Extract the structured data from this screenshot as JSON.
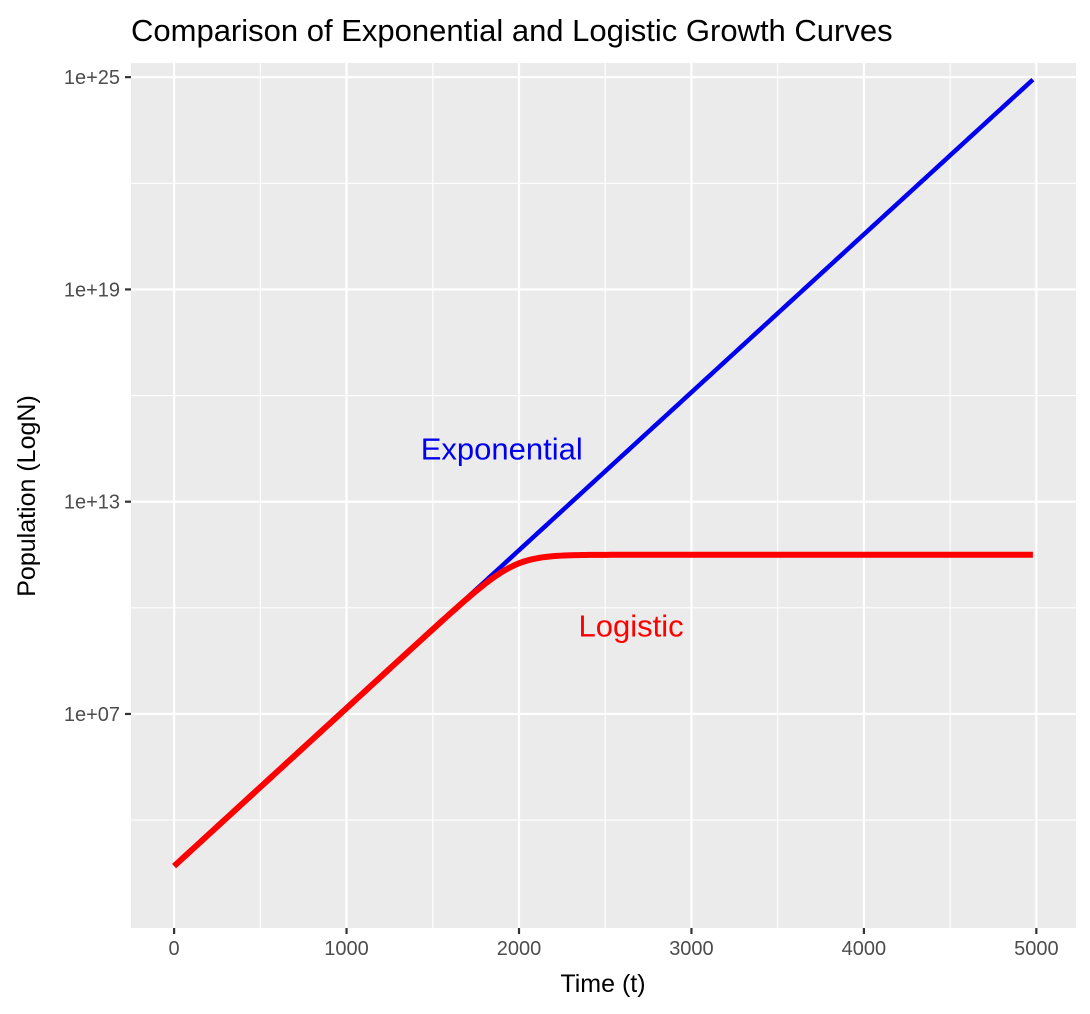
{
  "chart_data": {
    "type": "line",
    "title": "Comparison of Exponential and Logistic Growth Curves",
    "xlabel": "Time (t)",
    "ylabel": "Population (LogN)",
    "y_scale": "log10",
    "xlim": [
      -250,
      5230
    ],
    "ylim_log10": [
      0.95,
      25.4
    ],
    "x_ticks": [
      0,
      1000,
      2000,
      3000,
      4000,
      5000
    ],
    "x_tick_labels": [
      "0",
      "1000",
      "2000",
      "3000",
      "4000",
      "5000"
    ],
    "x_minor_ticks": [
      500,
      1500,
      2500,
      3500,
      4500
    ],
    "y_ticks_log10": [
      7,
      13,
      19,
      25
    ],
    "y_tick_labels": [
      "1e+07",
      "1e+13",
      "1e+19",
      "1e+25"
    ],
    "y_minor_ticks_log10": [
      4,
      10,
      16,
      22
    ],
    "grid": true,
    "panel_background": "#ebebeb",
    "series": [
      {
        "name": "Exponential",
        "color": "#0000ee",
        "model": "exponential",
        "t_start": 0,
        "t_end": 4980,
        "log10_N0": 2.7,
        "log10_growth_per_1000_t": 4.464
      },
      {
        "name": "Logistic",
        "color": "#ff0000",
        "model": "logistic",
        "t_start": 0,
        "t_end": 4980,
        "log10_N0": 2.7,
        "log10_growth_per_1000_t": 4.464,
        "log10_carrying_capacity": 11.5
      }
    ],
    "annotations": [
      {
        "text": "Exponential",
        "x": 1900,
        "y_log10": 14.5,
        "color": "#0000ee"
      },
      {
        "text": "Logistic",
        "x": 2650,
        "y_log10": 9.5,
        "color": "#ff0000"
      }
    ]
  }
}
